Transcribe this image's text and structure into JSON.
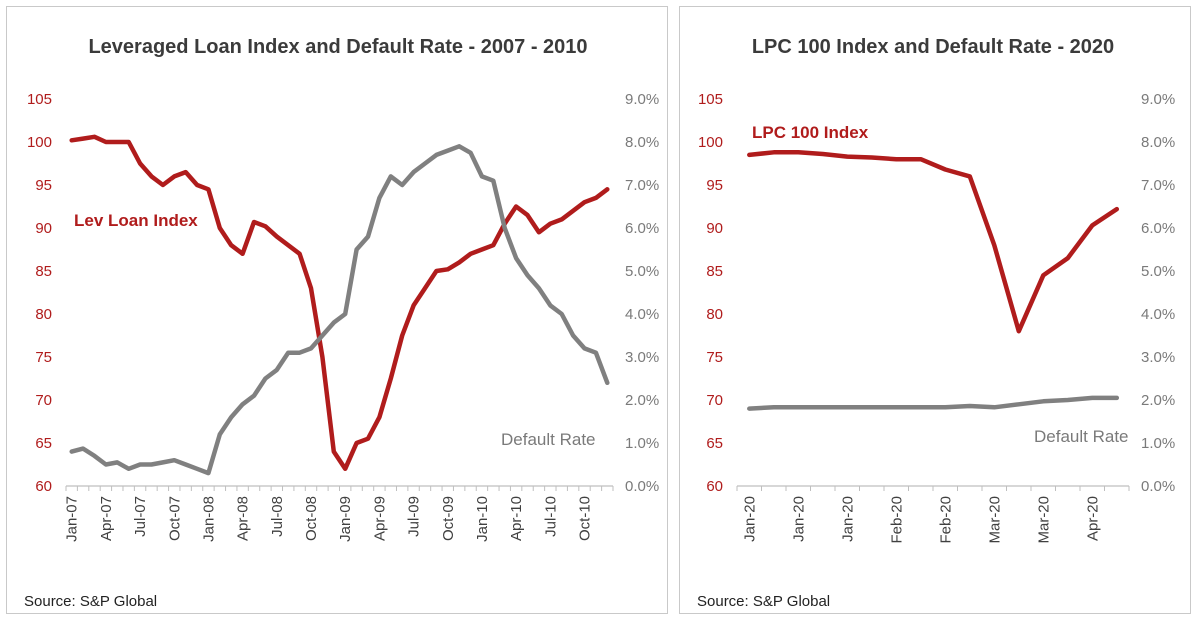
{
  "colors": {
    "lev_loan": "#b01c1c",
    "default_rate": "#808080",
    "axis": "#bfbfbf"
  },
  "chart_data": [
    {
      "type": "line",
      "title": "Leveraged  Loan Index and Default Rate - 2007 - 2010",
      "source": "Source: S&P Global",
      "y_left": {
        "ylim": [
          60,
          105
        ],
        "ticks": [
          "60",
          "65",
          "70",
          "75",
          "80",
          "85",
          "90",
          "95",
          "100",
          "105"
        ]
      },
      "y_right": {
        "ylim": [
          0,
          9
        ],
        "ticks": [
          "0.0%",
          "1.0%",
          "2.0%",
          "3.0%",
          "4.0%",
          "5.0%",
          "6.0%",
          "7.0%",
          "8.0%",
          "9.0%"
        ]
      },
      "x_ticks": [
        "Jan-07",
        "Apr-07",
        "Jul-07",
        "Oct-07",
        "Jan-08",
        "Apr-08",
        "Jul-08",
        "Oct-08",
        "Jan-09",
        "Apr-09",
        "Jul-09",
        "Oct-09",
        "Jan-10",
        "Apr-10",
        "Jul-10",
        "Oct-10"
      ],
      "annotations": {
        "lev_loan": "Lev Loan Index",
        "default_rate": "Default Rate"
      },
      "series": [
        {
          "key": "lev_loan",
          "axis": "left",
          "x": [
            "2007-01",
            "2007-02",
            "2007-03",
            "2007-04",
            "2007-05",
            "2007-06",
            "2007-07",
            "2007-08",
            "2007-09",
            "2007-10",
            "2007-11",
            "2007-12",
            "2008-01",
            "2008-02",
            "2008-03",
            "2008-04",
            "2008-05",
            "2008-06",
            "2008-07",
            "2008-08",
            "2008-09",
            "2008-10",
            "2008-11",
            "2008-12",
            "2009-01",
            "2009-02",
            "2009-03",
            "2009-04",
            "2009-05",
            "2009-06",
            "2009-07",
            "2009-08",
            "2009-09",
            "2009-10",
            "2009-11",
            "2009-12",
            "2010-01",
            "2010-02",
            "2010-03",
            "2010-04",
            "2010-05",
            "2010-06",
            "2010-07",
            "2010-08",
            "2010-09",
            "2010-10",
            "2010-11",
            "2010-12"
          ],
          "values": [
            100.2,
            100.4,
            100.6,
            100,
            100,
            100,
            97.5,
            96,
            95,
            96,
            96.5,
            95,
            94.5,
            90,
            88,
            87,
            90.7,
            90.2,
            89,
            88,
            87,
            83,
            75,
            64,
            62,
            65,
            65.5,
            68,
            72.5,
            77.5,
            81,
            83,
            85,
            85.2,
            86,
            87,
            87.5,
            88,
            90.5,
            92.5,
            91.5,
            89.5,
            90.5,
            91,
            92,
            93,
            93.5,
            94.5
          ]
        },
        {
          "key": "default_rate",
          "axis": "right",
          "x": [
            "2007-01",
            "2007-02",
            "2007-03",
            "2007-04",
            "2007-05",
            "2007-06",
            "2007-07",
            "2007-08",
            "2007-09",
            "2007-10",
            "2007-11",
            "2007-12",
            "2008-01",
            "2008-02",
            "2008-03",
            "2008-04",
            "2008-05",
            "2008-06",
            "2008-07",
            "2008-08",
            "2008-09",
            "2008-10",
            "2008-11",
            "2008-12",
            "2009-01",
            "2009-02",
            "2009-03",
            "2009-04",
            "2009-05",
            "2009-06",
            "2009-07",
            "2009-08",
            "2009-09",
            "2009-10",
            "2009-11",
            "2009-12",
            "2010-01",
            "2010-02",
            "2010-03",
            "2010-04",
            "2010-05",
            "2010-06",
            "2010-07",
            "2010-08",
            "2010-09",
            "2010-10",
            "2010-11",
            "2010-12"
          ],
          "values": [
            0.8,
            0.87,
            0.7,
            0.5,
            0.55,
            0.4,
            0.5,
            0.5,
            0.55,
            0.6,
            0.5,
            0.4,
            0.3,
            1.2,
            1.6,
            1.9,
            2.1,
            2.5,
            2.7,
            3.1,
            3.1,
            3.2,
            3.5,
            3.8,
            4.0,
            5.5,
            5.8,
            6.7,
            7.2,
            7.0,
            7.3,
            7.5,
            7.7,
            7.8,
            7.9,
            7.75,
            7.2,
            7.1,
            6.0,
            5.3,
            4.9,
            4.6,
            4.2,
            4.0,
            3.5,
            3.2,
            3.1,
            2.4
          ]
        }
      ]
    },
    {
      "type": "line",
      "title": "LPC 100 Index and Default Rate - 2020",
      "source": "Source: S&P Global",
      "y_left": {
        "ylim": [
          60,
          105
        ],
        "ticks": [
          "60",
          "65",
          "70",
          "75",
          "80",
          "85",
          "90",
          "95",
          "100",
          "105"
        ]
      },
      "y_right": {
        "ylim": [
          0,
          9
        ],
        "ticks": [
          "0.0%",
          "1.0%",
          "2.0%",
          "3.0%",
          "4.0%",
          "5.0%",
          "6.0%",
          "7.0%",
          "8.0%",
          "9.0%"
        ]
      },
      "x_ticks": [
        "Jan-20",
        "Jan-20",
        "Jan-20",
        "Feb-20",
        "Feb-20",
        "Mar-20",
        "Mar-20",
        "Apr-20"
      ],
      "annotations": {
        "lev_loan": "LPC 100 Index",
        "default_rate": "Default Rate"
      },
      "series": [
        {
          "key": "lev_loan",
          "axis": "left",
          "x": [
            0,
            1,
            2,
            3,
            4,
            5,
            6,
            7,
            8,
            9,
            10,
            11,
            12,
            13,
            14,
            15
          ],
          "values": [
            98.5,
            98.8,
            98.8,
            98.6,
            98.3,
            98.2,
            98,
            98,
            96.8,
            96,
            88,
            78,
            84.5,
            86.5,
            90.3,
            92.2
          ]
        },
        {
          "key": "default_rate",
          "axis": "right",
          "x": [
            0,
            1,
            2,
            3,
            4,
            5,
            6,
            7,
            8,
            9,
            10,
            11,
            12,
            13,
            14,
            15
          ],
          "values": [
            1.8,
            1.83,
            1.83,
            1.83,
            1.83,
            1.83,
            1.83,
            1.83,
            1.83,
            1.86,
            1.83,
            1.9,
            1.97,
            2.0,
            2.05,
            2.05
          ]
        }
      ]
    }
  ]
}
